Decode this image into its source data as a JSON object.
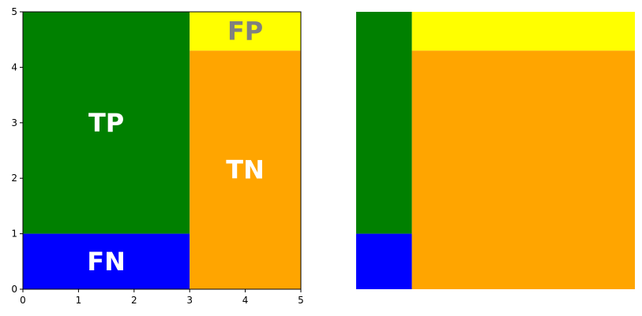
{
  "chart_data": [
    {
      "type": "heatmap",
      "title": "",
      "xlabel": "",
      "ylabel": "",
      "xlim": [
        0,
        5
      ],
      "ylim": [
        0,
        5
      ],
      "axes_visible": true,
      "x_ticks": [
        "0",
        "1",
        "2",
        "3",
        "4",
        "5"
      ],
      "y_ticks": [
        "0",
        "1",
        "2",
        "3",
        "4",
        "5"
      ],
      "regions": [
        {
          "label": "TP",
          "x": [
            0,
            3
          ],
          "y": [
            1,
            5
          ],
          "color": "#008000",
          "text_color": "#ffffff"
        },
        {
          "label": "FN",
          "x": [
            0,
            3
          ],
          "y": [
            0,
            1
          ],
          "color": "#0000ff",
          "text_color": "#ffffff"
        },
        {
          "label": "FP",
          "x": [
            3,
            5
          ],
          "y": [
            4.3,
            5
          ],
          "color": "#ffff00",
          "text_color": "#808080"
        },
        {
          "label": "TN",
          "x": [
            3,
            5
          ],
          "y": [
            0,
            4.3
          ],
          "color": "#ffa500",
          "text_color": "#ffffff"
        }
      ]
    },
    {
      "type": "heatmap",
      "title": "",
      "xlim": [
        0,
        5
      ],
      "ylim": [
        0,
        5
      ],
      "axes_visible": false,
      "regions": [
        {
          "x": [
            0,
            1
          ],
          "y": [
            1,
            5
          ],
          "color": "#008000"
        },
        {
          "x": [
            0,
            1
          ],
          "y": [
            0,
            1
          ],
          "color": "#0000ff"
        },
        {
          "x": [
            1,
            5
          ],
          "y": [
            4.3,
            5
          ],
          "color": "#ffff00"
        },
        {
          "x": [
            1,
            5
          ],
          "y": [
            0,
            4.3
          ],
          "color": "#ffa500"
        }
      ]
    }
  ]
}
